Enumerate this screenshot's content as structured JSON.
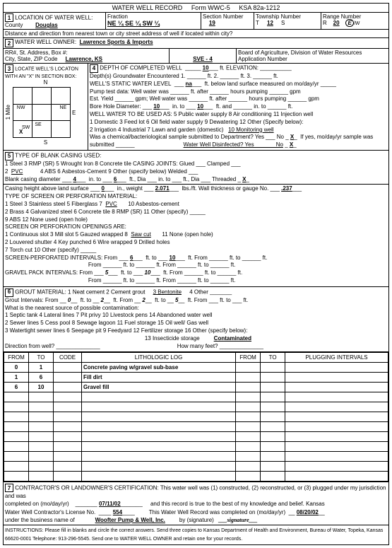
{
  "header": {
    "title": "WATER WELL RECORD",
    "form": "Form WWC-5",
    "ksa": "KSA 82a-1212"
  },
  "sec1": {
    "label": "LOCATION OF WATER WELL:",
    "countyLbl": "County",
    "county": "Douglas",
    "fracLbl": "Fraction",
    "frac": "NE ¼   SE ¼   SW ¼",
    "secLbl": "Section Number",
    "sec": "19",
    "twpLbl": "Township Number",
    "twpT": "T",
    "twp": "12",
    "twpS": "S",
    "rngLbl": "Range Number",
    "rngR": "R",
    "rng": "20",
    "rngE": "E/W",
    "dist": "Distance and direction from nearest town or city street address of well if located within city?"
  },
  "sec2": {
    "label": "WATER WELL OWNER:",
    "owner": "Lawrence Sports & Imports",
    "rrLbl": "RR#, St. Address, Box #:",
    "cityLbl": "City, State, ZIP Code",
    "city": "Lawrence, KS",
    "sve": "SVE - 4",
    "board": "Board of Agriculture, Division of Water Resources",
    "appLbl": "Application Number"
  },
  "sec3": {
    "label": "LOCATE WELL'S LOCATON WITH AN \"X\" IN SECTION BOX:",
    "n": "N",
    "s": "S",
    "e": "E",
    "w": "W",
    "nw": "NW",
    "ne": "NE",
    "sw": "SW",
    "se": "SE",
    "x": "X",
    "mile": "1 Mile"
  },
  "sec4": {
    "label": "DEPTH OF COMPLETED WELL",
    "depth": "10",
    "ftElev": "ft. ELEVATION:",
    "l1": "Depth(s) Groundwater Encountered   1. ______ ft.   2. ______ ft.   3. ______ ft.",
    "l2a": "WELL'S STATIC WATER LEVEL",
    "l2b": "na",
    "l2c": "ft. below land surface measured on mo/day/yr _____",
    "l3": "Pump test data:   Well water was ______ ft. after ______ hours pumping ______ gpm",
    "l4": "Est. Yield ______ gpm;  Well water was ______ ft. after ______ hours pumping ______ gpm",
    "l5a": "Bore Hole Diameter:",
    "l5b": "10",
    "l5c": "in. to",
    "l5d": "10",
    "l5e": "ft. and ______ in. to ______ ft.",
    "l6": "WELL WATER TO BE USED AS:  5  Public water supply       8  Air conditioning      11 Injection well",
    "l7": "1   Domestic    3 Feed lot         6  Oil field water supply     9  Dewatering         12 Other (Specify below):",
    "l8a": "2   Irrigation    4  Industrial     7  Lawn and garden (domestic)",
    "l8b": "10 Monitoring well",
    "l9a": "Was a chemical/bacteriological sample submitted to Department? Yes ___ No",
    "l9x": "X",
    "l9b": "If yes, mo/day/yr sample was",
    "l10a": "submitted ______",
    "l10b": "Water Well Disinfected?  Yes ______   No",
    "l10x": "X"
  },
  "sec5": {
    "label": "TYPE OF BLANK CASING USED:",
    "r1": "1  Steel              3  RMP (SR)          5  Wrought Iron      8  Concrete tile        CASING JOINTS:  Glued ___  Clamped ___",
    "r2a": "2",
    "r2b": "PVC",
    "r2c": "4  ABS                6  Asbestos-Cement  9  Other (specify below)                       Welded ___",
    "r3a": "Blank casing diameter",
    "r3b": "4",
    "r3c": "in. to",
    "r3d": "6",
    "r3e": "ft., Dia ___ in. to ___ ft., Dia ___     Threaded",
    "r3x": "X",
    "r4a": "Casing height above land surface",
    "r4b": "0",
    "r4c": "in., weight",
    "r4d": "2.071",
    "r4e": "lbs./ft.  Wall thickness or gauge No.",
    "r4f": ".237",
    "scr": "TYPE OF SCREEN OR PERFORATION MATERIAL:",
    "s1a": "1  Steel           3  Stainless steel    5  Fiberglass        7",
    "s1b": "PVC",
    "s1c": "10  Asbestos-cement",
    "s2": "2  Brass          4  Galvanized steel   6  Concrete tile     8  RMP (SR)     11  Other (specify) _____",
    "s3": "                                                                      9  ABS            12  None used (open hole)",
    "op": "SCREEN OR PERFORATION OPENINGS ARE:",
    "o1a": "1  Continuous slot    3  Mill slot          5  Gauzed wrapped                8",
    "o1b": "Saw cut",
    "o1c": "11  None (open hole)",
    "o2": "2  Louvered shutter   4  Key punched    6  Wire wrapped                    9  Drilled holes",
    "o3": "                                                   7  Torch cut                            10  Other (specify) _____",
    "spi": "SCREEN-PERFORATED INTERVALS:   From",
    "spi_a": "6",
    "spi_b": "ft. to",
    "spi_c": "10",
    "spi_d": "ft.   From ______ ft. to ______ ft.",
    "spi2": "From ______ ft. to ______ ft.   From ______ ft. to ______ ft.",
    "gpi": "GRAVEL PACK INTERVALS:            From",
    "gpi_a": "5",
    "gpi_b": "ft. to",
    "gpi_c": "10",
    "gpi_d": "ft.   From ______ ft. to ______ ft.",
    "gpi2": "From ______ ft. to ______ ft.   From ______ ft. to ______ ft."
  },
  "sec6": {
    "label": "GROUT MATERIAL:   1  Neat cement      2  Cement grout",
    "bent": "3 Bentonite",
    "oth": "4  Other _______",
    "gi": "Grout Intervals:  From",
    "gi_a": "0",
    "gi_b": "ft. to",
    "gi_c": "2",
    "gi_d": "ft.  From",
    "gi_e": "2",
    "gi_f": "ft. to",
    "gi_g": "5",
    "gi_h": "ft.  From ___ ft. to ___ ft.",
    "con": "What is the nearest source of possible contamination:",
    "c1": "1  Septic tank              4  Lateral lines        7  Pit privy             10  Livestock pens       14  Abandoned water well",
    "c2": "2  Sewer lines             5  Cess pool           8  Sewage lagoon   11  Fuel storage           15  Oil well/ Gas well",
    "c3a": "3  Watertight sewer lines  6  Seepage pit      9  Feedyard           12  Fertilizer storage     16  Other (specify below):",
    "c3b": "13  Insecticide storage",
    "c3c": "Contaminated",
    "dir": "Direction from well? ______________",
    "howmany": "How many feet? ______________"
  },
  "log": {
    "headers": [
      "FROM",
      "TO",
      "CODE",
      "LITHOLOGIC LOG",
      "FROM",
      "TO",
      "PLUGGING INTERVALS"
    ],
    "rows": [
      [
        "0",
        "1",
        "",
        "Concrete paving w/gravel sub-base",
        "",
        "",
        ""
      ],
      [
        "1",
        "6",
        "",
        "Fill dirt",
        "",
        "",
        ""
      ],
      [
        "6",
        "10",
        "",
        "Gravel fill",
        "",
        "",
        ""
      ],
      [
        "",
        "",
        "",
        "",
        "",
        "",
        ""
      ],
      [
        "",
        "",
        "",
        "",
        "",
        "",
        ""
      ],
      [
        "",
        "",
        "",
        "",
        "",
        "",
        ""
      ],
      [
        "",
        "",
        "",
        "",
        "",
        "",
        ""
      ],
      [
        "",
        "",
        "",
        "",
        "",
        "",
        ""
      ],
      [
        "",
        "",
        "",
        "",
        "",
        "",
        ""
      ],
      [
        "",
        "",
        "",
        "",
        "",
        "",
        ""
      ],
      [
        "",
        "",
        "",
        "",
        "",
        "",
        ""
      ],
      [
        "",
        "",
        "",
        "",
        "",
        "",
        ""
      ]
    ]
  },
  "sec7": {
    "cert": "CONTRACTOR'S OR LANDOWNER'S CERTIFICATION:  This water well was (1) constructed, (2) reconstructed, or (3) plugged under my jurisdiction and was",
    "comp": "completed on (mo/day/yr)",
    "date1": "07/11/02",
    "true": "and this record is true to the best of my knowledge and belief.  Kansas",
    "lic": "Water Well Contractor's License No.",
    "licno": "554",
    "rec": "This Water Well Record was completed on (mo/day/yr)",
    "date2": "08/20/02",
    "bus": "under the business name of",
    "busname": "Woofter Pump & Well, Inc.",
    "sig": "by (signature)",
    "inst": "INSTRUCTIONS:  Please fill in blanks and circle the correct answers.  Send three copies to Kansas Department of Health and Environment, Bureau of Water, Topeka, Kansas 66620-0001  Telephone:  913-296-5545.  Send one to WATER WELL OWNER and retain one for your records."
  }
}
